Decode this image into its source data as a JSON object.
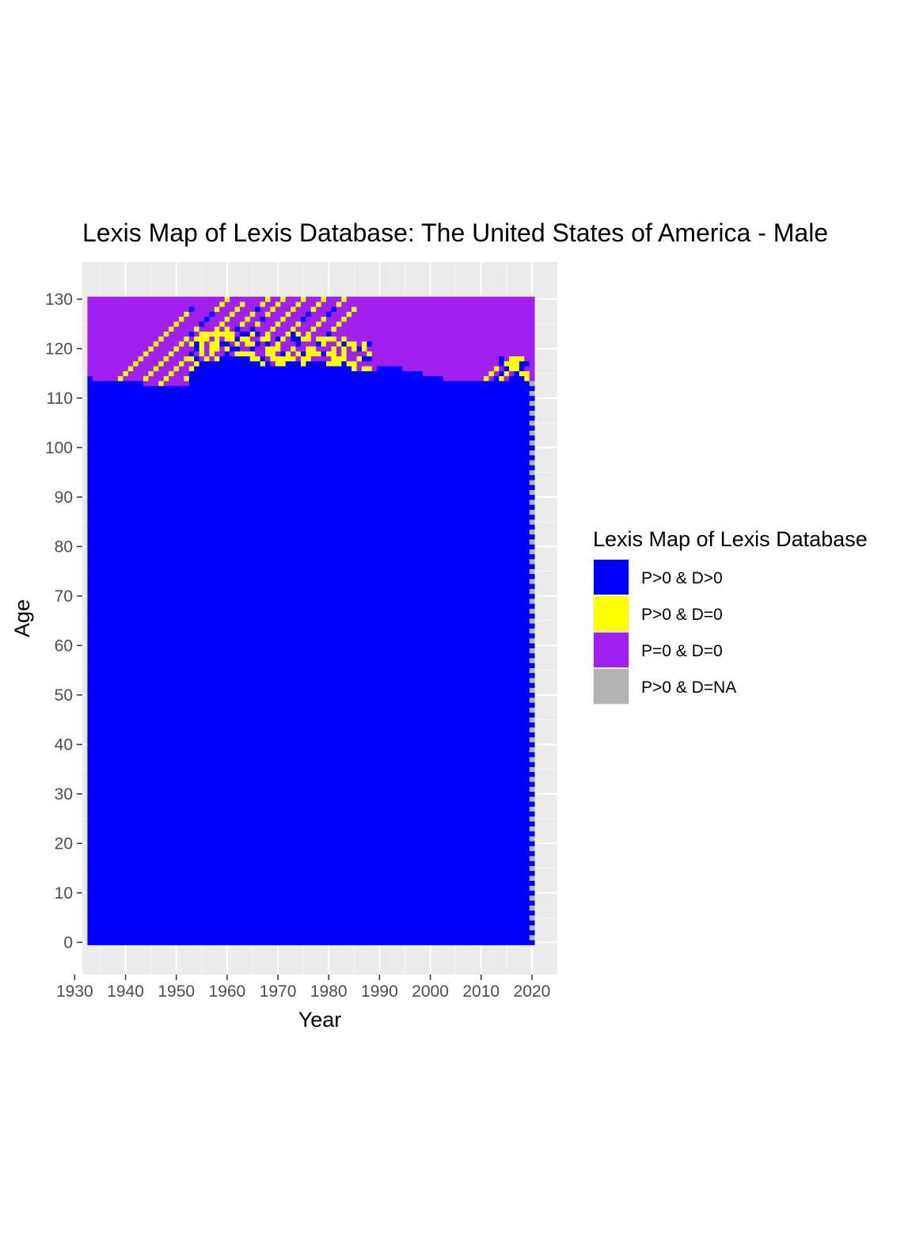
{
  "chart_data": {
    "type": "heatmap",
    "title": "Lexis Map of Lexis Database: The United States of America - Male",
    "xlabel": "Year",
    "ylabel": "Age",
    "xlim": [
      1931.5,
      2025
    ],
    "ylim": [
      -6.5,
      137.5
    ],
    "x_ticks": [
      "1930",
      "1940",
      "1950",
      "1960",
      "1970",
      "1980",
      "1990",
      "2000",
      "2010",
      "2020"
    ],
    "y_ticks": [
      "0",
      "10",
      "20",
      "30",
      "40",
      "50",
      "60",
      "70",
      "80",
      "90",
      "100",
      "110",
      "120",
      "130"
    ],
    "grid": true,
    "legend": {
      "title": "Lexis Map of Lexis Database",
      "position": "right",
      "entries": [
        {
          "label": "P>0 & D>0",
          "color": "#0000ff"
        },
        {
          "label": "P>0 & D=0",
          "color": "#ffff00"
        },
        {
          "label": "P=0 & D=0",
          "color": "#a020f0"
        },
        {
          "label": "P>0 & D=NA",
          "color": "#b3b3b3"
        }
      ]
    },
    "year_range": [
      1933,
      2020
    ],
    "age_range": [
      0,
      130
    ],
    "upper_blue_age_by_year": [
      114,
      113,
      113,
      113,
      113,
      113,
      113,
      113,
      113,
      113,
      113,
      112,
      112,
      112,
      112,
      112,
      112,
      112,
      112,
      112,
      115,
      116,
      117,
      117,
      117,
      117,
      118,
      118,
      118,
      118,
      118,
      118,
      117,
      117,
      116,
      117,
      116,
      116,
      116,
      117,
      117,
      117,
      116,
      117,
      117,
      116,
      116,
      116,
      116,
      116,
      116,
      115,
      115,
      115,
      115,
      115,
      115,
      116,
      116,
      116,
      116,
      116,
      115,
      115,
      115,
      115,
      114,
      114,
      114,
      114,
      113,
      113,
      113,
      113,
      113,
      113,
      113,
      113,
      113,
      113,
      113,
      113,
      113,
      113,
      113,
      113,
      113,
      113
    ],
    "yellow_diagonal_bands": [
      {
        "start_year": 1938,
        "start_age": 113,
        "end_year": 1953,
        "end_age": 128
      },
      {
        "start_year": 1943,
        "start_age": 113,
        "end_year": 1960,
        "end_age": 130
      },
      {
        "start_year": 1946,
        "start_age": 112,
        "end_year": 1963,
        "end_age": 129
      },
      {
        "start_year": 1952,
        "start_age": 114,
        "end_year": 1968,
        "end_age": 130
      },
      {
        "start_year": 1958,
        "start_age": 117,
        "end_year": 1971,
        "end_age": 130
      },
      {
        "start_year": 1962,
        "start_age": 117,
        "end_year": 1975,
        "end_age": 130
      },
      {
        "start_year": 1966,
        "start_age": 117,
        "end_year": 1979,
        "end_age": 130
      },
      {
        "start_year": 1970,
        "start_age": 117,
        "end_year": 1983,
        "end_age": 130
      },
      {
        "start_year": 1975,
        "start_age": 118,
        "end_year": 1985,
        "end_age": 128
      },
      {
        "start_year": 2011,
        "start_age": 114,
        "end_year": 2014,
        "end_age": 118
      },
      {
        "start_year": 2016,
        "start_age": 114,
        "end_year": 2019,
        "end_age": 119
      }
    ],
    "na_column_year": 2020
  }
}
